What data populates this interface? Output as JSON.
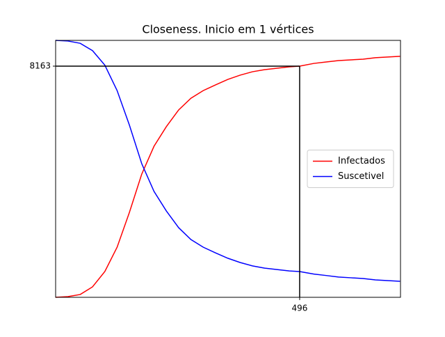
{
  "chart_data": {
    "type": "line",
    "title": "Closeness. Inicio em 1 vértices",
    "x": [
      0,
      25,
      50,
      75,
      100,
      125,
      150,
      175,
      200,
      225,
      250,
      275,
      300,
      325,
      350,
      375,
      400,
      425,
      450,
      475,
      496,
      525,
      550,
      575,
      600,
      625,
      650,
      675,
      700
    ],
    "series": [
      {
        "name": "Infectados",
        "color": "#ff0000",
        "values": [
          0,
          25,
          100,
          370,
          910,
          1770,
          3000,
          4350,
          5335,
          6025,
          6615,
          7030,
          7300,
          7500,
          7695,
          7845,
          7965,
          8040,
          8090,
          8140,
          8163,
          8260,
          8310,
          8360,
          8385,
          8410,
          8460,
          8485,
          8510
        ]
      },
      {
        "name": "Suscetivel",
        "color": "#0000ff",
        "values": [
          9073,
          9050,
          8970,
          8710,
          8200,
          7300,
          6080,
          4720,
          3740,
          3050,
          2460,
          2040,
          1770,
          1570,
          1380,
          1230,
          1110,
          1030,
          980,
          930,
          910,
          820,
          770,
          715,
          690,
          665,
          615,
          590,
          565
        ]
      }
    ],
    "xlim": [
      0,
      701
    ],
    "ylim": [
      0,
      9073
    ],
    "xticks": [
      496
    ],
    "yticks": [
      8163
    ],
    "legend": "center right"
  }
}
